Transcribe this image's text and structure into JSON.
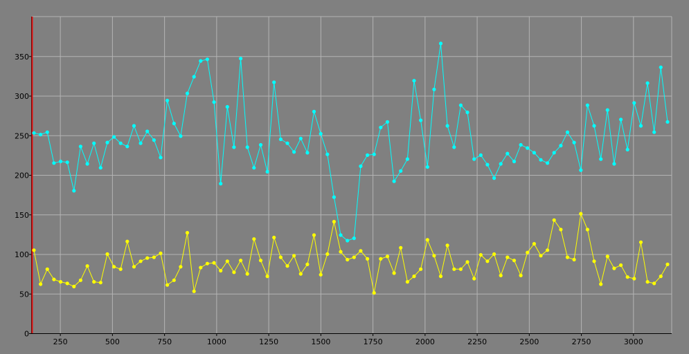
{
  "chart_data": {
    "type": "line",
    "title": "",
    "xlabel": "",
    "ylabel": "",
    "xlim": [
      115,
      3185
    ],
    "ylim": [
      0,
      400
    ],
    "grid": true,
    "legend": "none",
    "x_ticks": [
      250,
      500,
      750,
      1000,
      1250,
      1500,
      1750,
      2000,
      2250,
      2500,
      2750,
      3000
    ],
    "y_ticks": [
      0,
      50,
      100,
      150,
      200,
      250,
      300,
      350
    ],
    "colors": {
      "background": "#808080",
      "grid": "#b4b4b4",
      "axis": "#000000",
      "left_marker": "#e01010",
      "series_cyan": "#00ffff",
      "series_yellow": "#ffff00"
    },
    "series": [
      {
        "color": "#00ffff",
        "points": [
          [
            125,
            253
          ],
          [
            157,
            251
          ],
          [
            189,
            254
          ],
          [
            221,
            215
          ],
          [
            253,
            217
          ],
          [
            285,
            216
          ],
          [
            317,
            180
          ],
          [
            349,
            236
          ],
          [
            381,
            214
          ],
          [
            413,
            240
          ],
          [
            445,
            209
          ],
          [
            477,
            241
          ],
          [
            509,
            248
          ],
          [
            541,
            240
          ],
          [
            573,
            236
          ],
          [
            605,
            262
          ],
          [
            637,
            240
          ],
          [
            669,
            255
          ],
          [
            701,
            244
          ],
          [
            733,
            222
          ],
          [
            765,
            294
          ],
          [
            797,
            265
          ],
          [
            829,
            249
          ],
          [
            861,
            303
          ],
          [
            893,
            324
          ],
          [
            925,
            344
          ],
          [
            957,
            346
          ],
          [
            989,
            292
          ],
          [
            1021,
            189
          ],
          [
            1053,
            286
          ],
          [
            1085,
            235
          ],
          [
            1117,
            347
          ],
          [
            1149,
            235
          ],
          [
            1181,
            209
          ],
          [
            1213,
            238
          ],
          [
            1245,
            204
          ],
          [
            1277,
            317
          ],
          [
            1309,
            245
          ],
          [
            1341,
            240
          ],
          [
            1373,
            229
          ],
          [
            1405,
            246
          ],
          [
            1437,
            228
          ],
          [
            1469,
            280
          ],
          [
            1501,
            252
          ],
          [
            1533,
            226
          ],
          [
            1565,
            172
          ],
          [
            1597,
            124
          ],
          [
            1629,
            117
          ],
          [
            1661,
            120
          ],
          [
            1693,
            211
          ],
          [
            1725,
            225
          ],
          [
            1757,
            226
          ],
          [
            1789,
            260
          ],
          [
            1821,
            267
          ],
          [
            1853,
            192
          ],
          [
            1885,
            205
          ],
          [
            1917,
            220
          ],
          [
            1949,
            319
          ],
          [
            1981,
            269
          ],
          [
            2013,
            210
          ],
          [
            2045,
            308
          ],
          [
            2077,
            366
          ],
          [
            2109,
            262
          ],
          [
            2141,
            235
          ],
          [
            2173,
            288
          ],
          [
            2205,
            279
          ],
          [
            2237,
            220
          ],
          [
            2269,
            225
          ],
          [
            2301,
            213
          ],
          [
            2333,
            196
          ],
          [
            2365,
            214
          ],
          [
            2397,
            227
          ],
          [
            2429,
            217
          ],
          [
            2461,
            238
          ],
          [
            2493,
            234
          ],
          [
            2525,
            228
          ],
          [
            2557,
            219
          ],
          [
            2589,
            215
          ],
          [
            2621,
            228
          ],
          [
            2653,
            237
          ],
          [
            2685,
            254
          ],
          [
            2717,
            241
          ],
          [
            2749,
            206
          ],
          [
            2781,
            288
          ],
          [
            2813,
            262
          ],
          [
            2845,
            220
          ],
          [
            2877,
            282
          ],
          [
            2909,
            214
          ],
          [
            2941,
            270
          ],
          [
            2973,
            232
          ],
          [
            3005,
            291
          ],
          [
            3037,
            262
          ],
          [
            3069,
            316
          ],
          [
            3101,
            254
          ],
          [
            3133,
            336
          ],
          [
            3165,
            267
          ]
        ]
      },
      {
        "color": "#ffff00",
        "points": [
          [
            125,
            105
          ],
          [
            157,
            62
          ],
          [
            189,
            81
          ],
          [
            221,
            68
          ],
          [
            253,
            65
          ],
          [
            285,
            63
          ],
          [
            317,
            59
          ],
          [
            349,
            67
          ],
          [
            381,
            85
          ],
          [
            413,
            65
          ],
          [
            445,
            64
          ],
          [
            477,
            100
          ],
          [
            509,
            84
          ],
          [
            541,
            81
          ],
          [
            573,
            116
          ],
          [
            605,
            84
          ],
          [
            637,
            91
          ],
          [
            669,
            95
          ],
          [
            701,
            96
          ],
          [
            733,
            101
          ],
          [
            765,
            61
          ],
          [
            797,
            67
          ],
          [
            829,
            84
          ],
          [
            861,
            127
          ],
          [
            893,
            53
          ],
          [
            925,
            83
          ],
          [
            957,
            88
          ],
          [
            989,
            89
          ],
          [
            1021,
            79
          ],
          [
            1053,
            91
          ],
          [
            1085,
            77
          ],
          [
            1117,
            92
          ],
          [
            1149,
            75
          ],
          [
            1181,
            119
          ],
          [
            1213,
            92
          ],
          [
            1245,
            72
          ],
          [
            1277,
            121
          ],
          [
            1309,
            96
          ],
          [
            1341,
            85
          ],
          [
            1373,
            98
          ],
          [
            1405,
            75
          ],
          [
            1437,
            87
          ],
          [
            1469,
            124
          ],
          [
            1501,
            74
          ],
          [
            1533,
            100
          ],
          [
            1565,
            141
          ],
          [
            1597,
            103
          ],
          [
            1629,
            93
          ],
          [
            1661,
            96
          ],
          [
            1693,
            104
          ],
          [
            1725,
            94
          ],
          [
            1757,
            51
          ],
          [
            1789,
            94
          ],
          [
            1821,
            97
          ],
          [
            1853,
            76
          ],
          [
            1885,
            108
          ],
          [
            1917,
            65
          ],
          [
            1949,
            72
          ],
          [
            1981,
            81
          ],
          [
            2013,
            118
          ],
          [
            2045,
            98
          ],
          [
            2077,
            72
          ],
          [
            2109,
            111
          ],
          [
            2141,
            81
          ],
          [
            2173,
            81
          ],
          [
            2205,
            90
          ],
          [
            2237,
            69
          ],
          [
            2269,
            99
          ],
          [
            2301,
            91
          ],
          [
            2333,
            100
          ],
          [
            2365,
            73
          ],
          [
            2397,
            96
          ],
          [
            2429,
            92
          ],
          [
            2461,
            73
          ],
          [
            2493,
            102
          ],
          [
            2525,
            113
          ],
          [
            2557,
            98
          ],
          [
            2589,
            105
          ],
          [
            2621,
            143
          ],
          [
            2653,
            131
          ],
          [
            2685,
            96
          ],
          [
            2717,
            93
          ],
          [
            2749,
            151
          ],
          [
            2781,
            131
          ],
          [
            2813,
            91
          ],
          [
            2845,
            62
          ],
          [
            2877,
            97
          ],
          [
            2909,
            82
          ],
          [
            2941,
            86
          ],
          [
            2973,
            71
          ],
          [
            3005,
            69
          ],
          [
            3037,
            115
          ],
          [
            3069,
            65
          ],
          [
            3101,
            63
          ],
          [
            3133,
            72
          ],
          [
            3165,
            87
          ]
        ]
      }
    ]
  }
}
